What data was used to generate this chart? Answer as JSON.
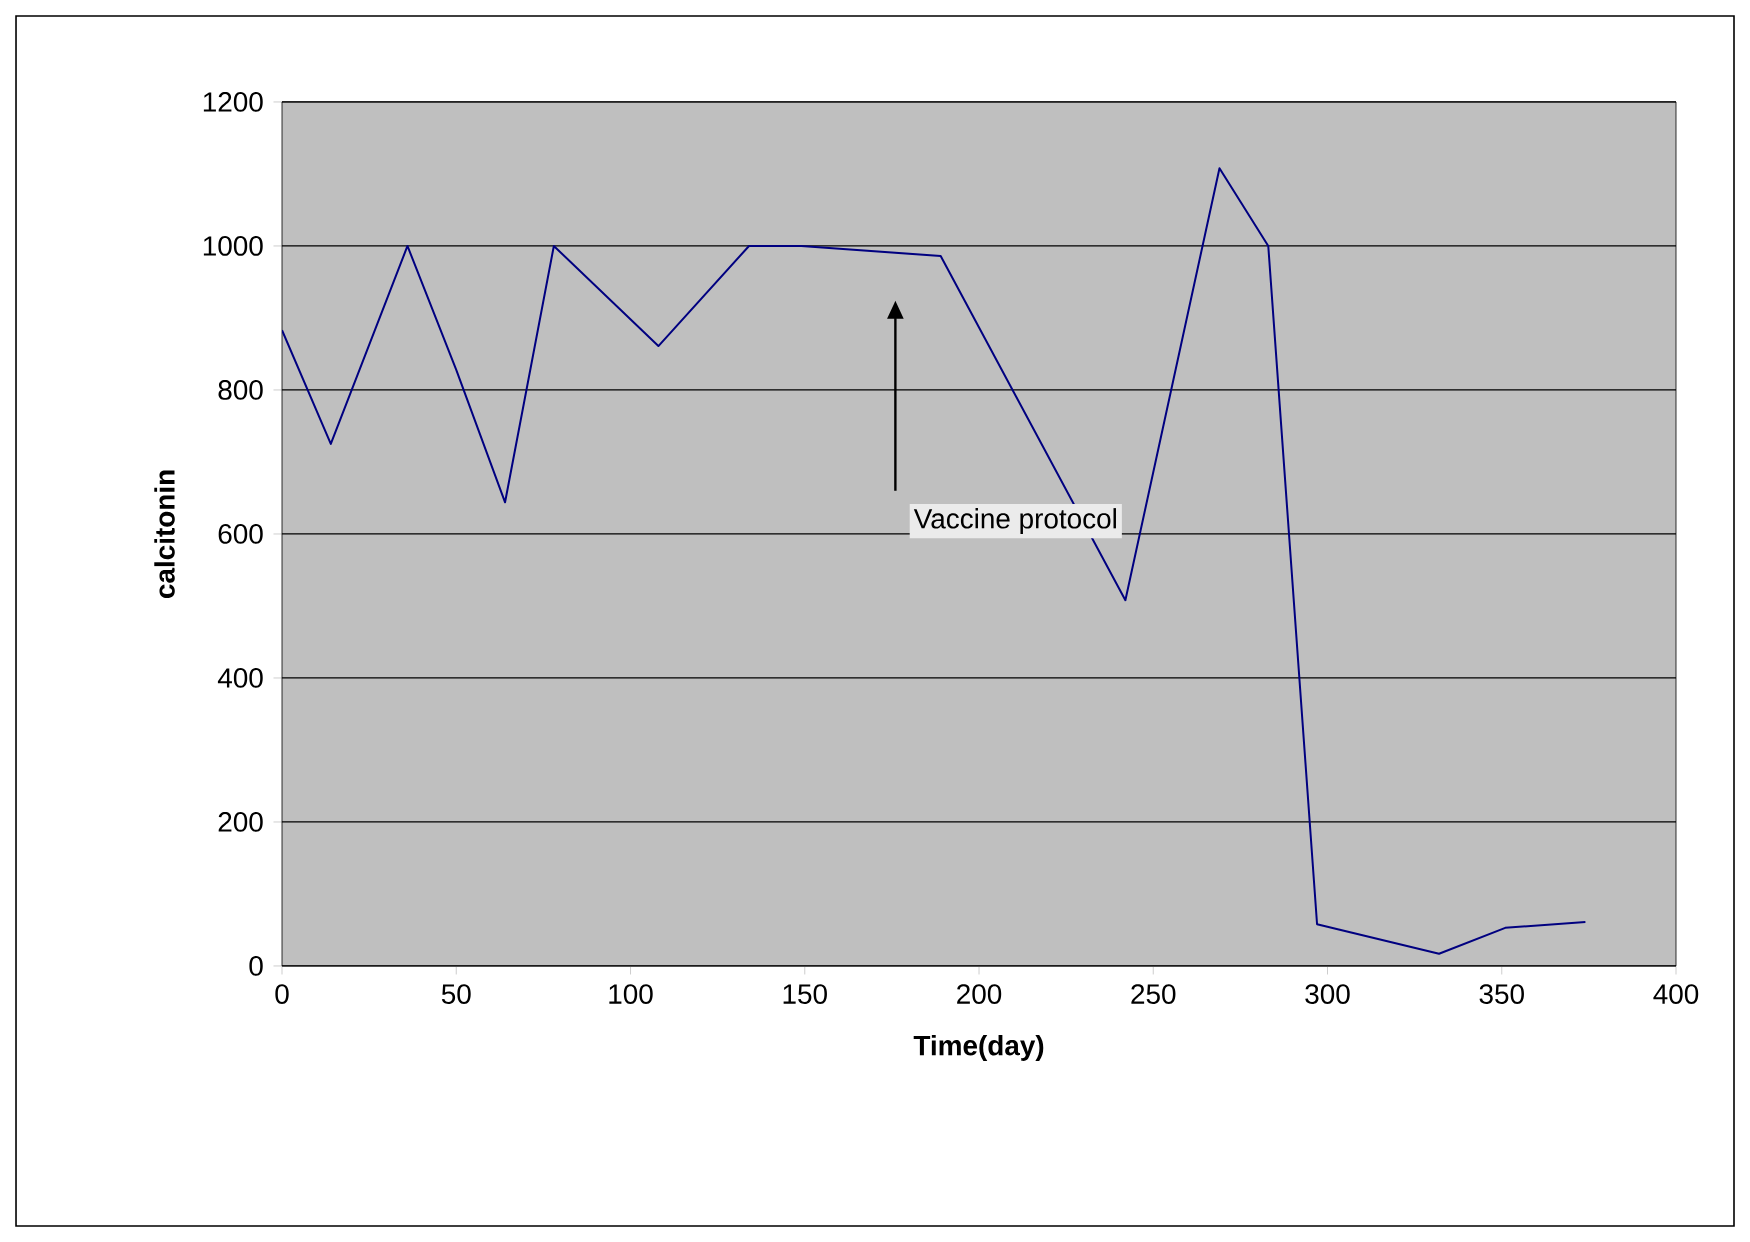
{
  "chart_data": {
    "type": "line",
    "xlabel": "Time(day)",
    "ylabel": "calcitonin",
    "x": [
      0,
      14,
      36,
      50,
      64,
      78,
      108,
      134,
      149,
      189,
      242,
      269,
      283,
      297,
      332,
      351,
      374
    ],
    "values": [
      883,
      725,
      1000,
      828,
      644,
      1000,
      861,
      1000,
      1000,
      986,
      508,
      1108,
      1000,
      58,
      17,
      53,
      61
    ],
    "color": "#000080",
    "xlim": [
      0,
      400
    ],
    "ylim": [
      0,
      1200
    ],
    "xticks": [
      0,
      50,
      100,
      150,
      200,
      250,
      300,
      350,
      400
    ],
    "yticks": [
      0,
      200,
      400,
      600,
      800,
      1000,
      1200
    ],
    "grid": "y",
    "marker": "none",
    "line_style": "solid",
    "annotations": [
      "Vaccine protocol"
    ]
  }
}
